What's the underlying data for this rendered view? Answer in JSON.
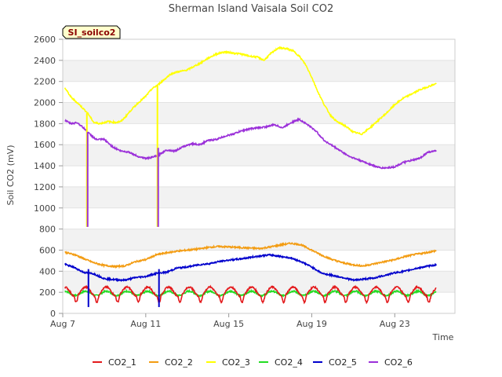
{
  "chart_data": {
    "type": "line",
    "title": "Sherman Island Vaisala Soil CO2",
    "badge": "SI_soilco2",
    "xlabel": "Time",
    "ylabel": "Soil CO2 (mV)",
    "xlim": [
      0,
      18.9
    ],
    "ylim": [
      0,
      2600
    ],
    "yticks": [
      0,
      200,
      400,
      600,
      800,
      1000,
      1200,
      1400,
      1600,
      1800,
      2000,
      2200,
      2400,
      2600
    ],
    "xticks": [
      {
        "value": 0,
        "label": "Aug 7"
      },
      {
        "value": 4,
        "label": "Aug 11"
      },
      {
        "value": 8,
        "label": "Aug 15"
      },
      {
        "value": 12,
        "label": "Aug 19"
      },
      {
        "value": 16,
        "label": "Aug 23"
      }
    ],
    "grid": "horizontal bands",
    "legend_position": "bottom",
    "series": [
      {
        "name": "CO2_1",
        "color": "#e31a1c",
        "base": 195,
        "daily_amp": 45,
        "points": [
          [
            0.1,
            205
          ],
          [
            18.0,
            205
          ]
        ]
      },
      {
        "name": "CO2_2",
        "color": "#f39c12",
        "points": [
          [
            0.1,
            580
          ],
          [
            0.6,
            555
          ],
          [
            1.0,
            520
          ],
          [
            1.5,
            480
          ],
          [
            2.0,
            455
          ],
          [
            2.5,
            445
          ],
          [
            3.0,
            450
          ],
          [
            3.5,
            490
          ],
          [
            4.0,
            510
          ],
          [
            4.5,
            555
          ],
          [
            5.0,
            575
          ],
          [
            5.5,
            590
          ],
          [
            6.0,
            600
          ],
          [
            6.5,
            610
          ],
          [
            7.0,
            625
          ],
          [
            7.5,
            635
          ],
          [
            8.0,
            630
          ],
          [
            8.5,
            625
          ],
          [
            9.0,
            620
          ],
          [
            9.5,
            615
          ],
          [
            10.0,
            630
          ],
          [
            10.5,
            650
          ],
          [
            11.0,
            665
          ],
          [
            11.5,
            650
          ],
          [
            12.0,
            600
          ],
          [
            12.5,
            550
          ],
          [
            13.0,
            510
          ],
          [
            13.5,
            480
          ],
          [
            14.0,
            460
          ],
          [
            14.5,
            450
          ],
          [
            15.0,
            470
          ],
          [
            15.5,
            490
          ],
          [
            16.0,
            510
          ],
          [
            16.5,
            540
          ],
          [
            17.0,
            560
          ],
          [
            17.5,
            575
          ],
          [
            18.0,
            595
          ]
        ]
      },
      {
        "name": "CO2_3",
        "color": "#ffff00",
        "points": [
          [
            0.1,
            2140
          ],
          [
            0.4,
            2050
          ],
          [
            0.8,
            1980
          ],
          [
            1.2,
            1900
          ],
          [
            1.5,
            1810
          ],
          [
            1.8,
            1800
          ],
          [
            2.2,
            1820
          ],
          [
            2.5,
            1810
          ],
          [
            2.8,
            1820
          ],
          [
            3.0,
            1860
          ],
          [
            3.3,
            1930
          ],
          [
            3.6,
            1990
          ],
          [
            4.0,
            2060
          ],
          [
            4.3,
            2130
          ],
          [
            4.6,
            2170
          ],
          [
            4.9,
            2220
          ],
          [
            5.2,
            2270
          ],
          [
            5.5,
            2290
          ],
          [
            5.8,
            2300
          ],
          [
            6.0,
            2310
          ],
          [
            6.3,
            2340
          ],
          [
            6.6,
            2370
          ],
          [
            7.0,
            2420
          ],
          [
            7.4,
            2460
          ],
          [
            7.8,
            2480
          ],
          [
            8.2,
            2470
          ],
          [
            8.6,
            2460
          ],
          [
            9.0,
            2440
          ],
          [
            9.4,
            2430
          ],
          [
            9.7,
            2400
          ],
          [
            10.0,
            2460
          ],
          [
            10.4,
            2520
          ],
          [
            10.8,
            2510
          ],
          [
            11.1,
            2490
          ],
          [
            11.4,
            2440
          ],
          [
            11.7,
            2360
          ],
          [
            12.0,
            2240
          ],
          [
            12.3,
            2100
          ],
          [
            12.6,
            1980
          ],
          [
            12.9,
            1880
          ],
          [
            13.2,
            1820
          ],
          [
            13.6,
            1780
          ],
          [
            14.0,
            1720
          ],
          [
            14.4,
            1700
          ],
          [
            14.8,
            1760
          ],
          [
            15.2,
            1830
          ],
          [
            15.6,
            1900
          ],
          [
            16.0,
            1980
          ],
          [
            16.4,
            2040
          ],
          [
            16.8,
            2080
          ],
          [
            17.2,
            2120
          ],
          [
            17.6,
            2150
          ],
          [
            18.0,
            2180
          ]
        ]
      },
      {
        "name": "CO2_4",
        "color": "#22dd22",
        "base": 185,
        "daily_amp": 20,
        "points": [
          [
            0.1,
            190
          ],
          [
            18.0,
            190
          ]
        ]
      },
      {
        "name": "CO2_5",
        "color": "#0000cc",
        "points": [
          [
            0.1,
            465
          ],
          [
            0.5,
            440
          ],
          [
            1.0,
            390
          ],
          [
            1.5,
            375
          ],
          [
            2.0,
            330
          ],
          [
            2.5,
            320
          ],
          [
            3.0,
            315
          ],
          [
            3.5,
            340
          ],
          [
            4.0,
            350
          ],
          [
            4.5,
            380
          ],
          [
            5.0,
            390
          ],
          [
            5.5,
            430
          ],
          [
            6.0,
            440
          ],
          [
            6.5,
            460
          ],
          [
            7.0,
            470
          ],
          [
            7.5,
            490
          ],
          [
            8.0,
            505
          ],
          [
            8.5,
            515
          ],
          [
            9.0,
            530
          ],
          [
            9.5,
            545
          ],
          [
            10.0,
            555
          ],
          [
            10.5,
            540
          ],
          [
            11.0,
            525
          ],
          [
            11.5,
            490
          ],
          [
            12.0,
            440
          ],
          [
            12.5,
            380
          ],
          [
            13.0,
            360
          ],
          [
            13.5,
            340
          ],
          [
            14.0,
            315
          ],
          [
            14.5,
            325
          ],
          [
            15.0,
            335
          ],
          [
            15.5,
            360
          ],
          [
            16.0,
            385
          ],
          [
            16.5,
            400
          ],
          [
            17.0,
            425
          ],
          [
            17.5,
            445
          ],
          [
            18.0,
            460
          ]
        ]
      },
      {
        "name": "CO2_6",
        "color": "#9b30d9",
        "points": [
          [
            0.1,
            1830
          ],
          [
            0.4,
            1800
          ],
          [
            0.7,
            1810
          ],
          [
            1.0,
            1760
          ],
          [
            1.3,
            1700
          ],
          [
            1.6,
            1650
          ],
          [
            2.0,
            1650
          ],
          [
            2.4,
            1580
          ],
          [
            2.8,
            1540
          ],
          [
            3.2,
            1530
          ],
          [
            3.6,
            1490
          ],
          [
            4.0,
            1470
          ],
          [
            4.3,
            1480
          ],
          [
            4.6,
            1500
          ],
          [
            5.0,
            1550
          ],
          [
            5.4,
            1540
          ],
          [
            5.8,
            1580
          ],
          [
            6.2,
            1610
          ],
          [
            6.6,
            1600
          ],
          [
            7.0,
            1640
          ],
          [
            7.4,
            1650
          ],
          [
            7.8,
            1680
          ],
          [
            8.2,
            1700
          ],
          [
            8.6,
            1730
          ],
          [
            9.0,
            1750
          ],
          [
            9.4,
            1760
          ],
          [
            9.8,
            1770
          ],
          [
            10.2,
            1790
          ],
          [
            10.6,
            1760
          ],
          [
            11.0,
            1810
          ],
          [
            11.4,
            1840
          ],
          [
            11.8,
            1790
          ],
          [
            12.2,
            1730
          ],
          [
            12.6,
            1640
          ],
          [
            13.0,
            1590
          ],
          [
            13.4,
            1540
          ],
          [
            13.8,
            1490
          ],
          [
            14.2,
            1460
          ],
          [
            14.6,
            1430
          ],
          [
            15.0,
            1400
          ],
          [
            15.3,
            1380
          ],
          [
            15.6,
            1380
          ],
          [
            16.0,
            1390
          ],
          [
            16.4,
            1430
          ],
          [
            16.8,
            1450
          ],
          [
            17.2,
            1470
          ],
          [
            17.6,
            1530
          ],
          [
            18.0,
            1540
          ]
        ]
      }
    ],
    "spikes": [
      {
        "x": 1.2,
        "series": [
          "CO2_5",
          "CO2_6",
          "CO2_3"
        ],
        "low": 60,
        "high": 1840
      },
      {
        "x": 4.6,
        "series": [
          "CO2_5",
          "CO2_6",
          "CO2_3"
        ],
        "low": 60,
        "high": 2300
      }
    ]
  }
}
